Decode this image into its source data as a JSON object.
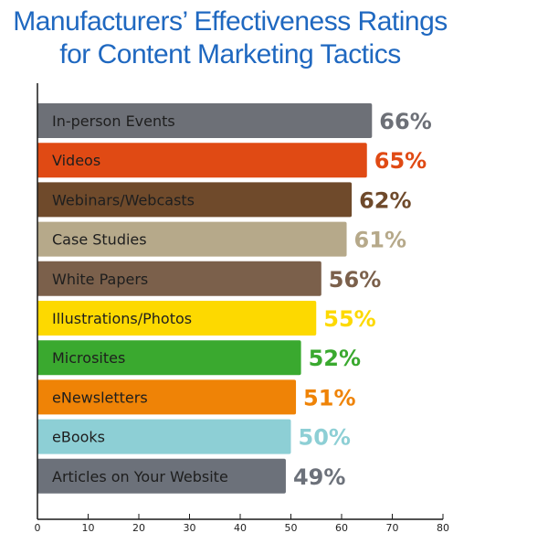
{
  "chart_data": {
    "type": "bar",
    "orientation": "horizontal",
    "title": "Manufacturers’ Effectiveness Ratings for Content Marketing Tactics",
    "title_lines": [
      "Manufacturers’ Effectiveness Ratings",
      "for Content Marketing Tactics"
    ],
    "xlabel": "",
    "ylabel": "",
    "xlim": [
      0,
      80
    ],
    "xticks": [
      0,
      10,
      20,
      30,
      40,
      50,
      60,
      70,
      80
    ],
    "grid": false,
    "legend": "none",
    "value_suffix": "%",
    "categories": [
      "In-person Events",
      "Videos",
      "Webinars/Webcasts",
      "Case Studies",
      "White Papers",
      "Illustrations/Photos",
      "Microsites",
      "eNewsletters",
      "eBooks",
      "Articles on Your Website"
    ],
    "values": [
      66,
      65,
      62,
      61,
      56,
      55,
      52,
      51,
      50,
      49
    ],
    "colors": [
      "#6d7077",
      "#e04a14",
      "#6f4a2b",
      "#b6a98a",
      "#7b604b",
      "#fdd900",
      "#3aa92f",
      "#ef8306",
      "#8dcfd5",
      "#6c717a"
    ]
  },
  "colors": {
    "title": "#1f68c0",
    "axis": "#1a1a1a"
  }
}
